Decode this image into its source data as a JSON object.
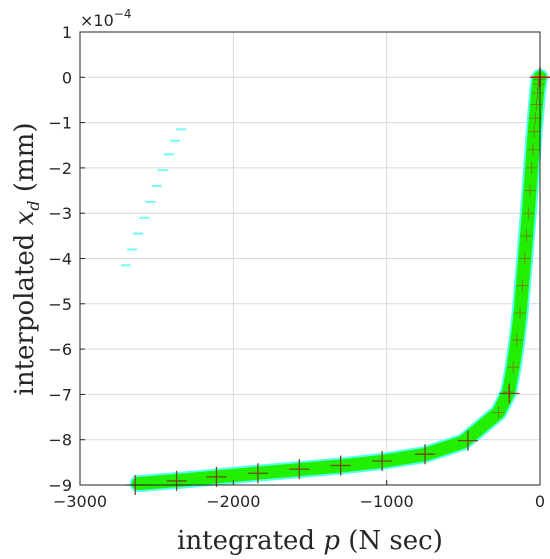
{
  "chart_data": {
    "type": "line",
    "xlabel_text": "integrated",
    "xlabel_var": "p",
    "xlabel_unit": "(N sec)",
    "ylabel_text": "interpolated",
    "ylabel_var": "x",
    "ylabel_sub": "d",
    "ylabel_unit": "(mm)",
    "y_exponent_base": "×10",
    "y_exponent_power": "−4",
    "xlim": [
      -3000,
      0
    ],
    "ylim": [
      -9,
      1
    ],
    "x_ticks": [
      -3000,
      -2000,
      -1000,
      0
    ],
    "x_tick_labels": [
      "−3000",
      "−2000",
      "−1000",
      "0"
    ],
    "y_ticks": [
      1,
      0,
      -1,
      -2,
      -3,
      -4,
      -5,
      -6,
      -7,
      -8,
      -9
    ],
    "y_tick_labels": [
      "1",
      "0",
      "−1",
      "−2",
      "−3",
      "−4",
      "−5",
      "−6",
      "−7",
      "−8",
      "−9"
    ],
    "grid": true,
    "colors": {
      "band": "#22ee00",
      "band_halo": "#55ffee",
      "marker": "#704818",
      "origin_marker": "#cc1010",
      "grid": "#d9d9d9",
      "axis": "#262626"
    },
    "series": [
      {
        "role": "interpolated-curve",
        "x": [
          -2620,
          -2360,
          -2100,
          -1840,
          -1570,
          -1300,
          -1030,
          -750,
          -500,
          -270,
          -205,
          -175,
          -150,
          -130,
          -115,
          -100,
          -88,
          -76,
          -65,
          -55,
          -46,
          -38,
          -30,
          -23,
          -16,
          -10,
          -5,
          0
        ],
        "y": [
          -8.97,
          -8.9,
          -8.82,
          -8.74,
          -8.66,
          -8.58,
          -8.48,
          -8.33,
          -8.05,
          -7.4,
          -6.95,
          -6.4,
          -5.8,
          -5.2,
          -4.6,
          -4.0,
          -3.5,
          -3.0,
          -2.5,
          -2.0,
          -1.6,
          -1.2,
          -0.9,
          -0.6,
          -0.35,
          -0.15,
          -0.05,
          0
        ]
      },
      {
        "role": "sample-points",
        "x": [
          -2640,
          -2370,
          -2110,
          -1840,
          -1570,
          -1300,
          -1030,
          -750,
          -470,
          -200
        ],
        "y": [
          -9.0,
          -8.91,
          -8.82,
          -8.74,
          -8.65,
          -8.57,
          -8.47,
          -8.32,
          -8.02,
          -6.98
        ]
      },
      {
        "role": "faint-trace",
        "x": [
          -2700,
          -2660,
          -2620,
          -2580,
          -2540,
          -2500,
          -2460,
          -2420,
          -2380,
          -2340
        ],
        "y": [
          -4.15,
          -3.8,
          -3.45,
          -3.1,
          -2.75,
          -2.4,
          -2.05,
          -1.7,
          -1.4,
          -1.15
        ]
      }
    ]
  }
}
